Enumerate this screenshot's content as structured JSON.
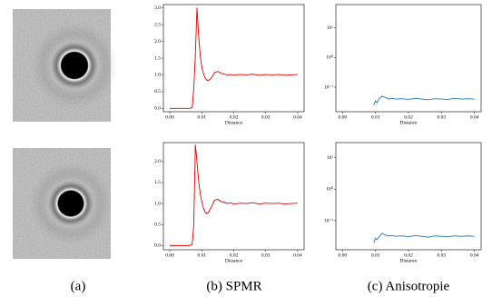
{
  "captions": [
    "(a)",
    "(b)  SPMR",
    "(c)  Anisotropie"
  ],
  "chart_data": [
    {
      "type": "line",
      "xlabel": "Distance",
      "log_y": false,
      "x": [
        0,
        0.002,
        0.004,
        0.006,
        0.007,
        0.0075,
        0.008,
        0.0085,
        0.009,
        0.0095,
        0.01,
        0.0105,
        0.011,
        0.0115,
        0.012,
        0.013,
        0.014,
        0.015,
        0.016,
        0.017,
        0.018,
        0.019,
        0.02,
        0.022,
        0.024,
        0.026,
        0.028,
        0.03,
        0.032,
        0.034,
        0.036,
        0.038,
        0.04
      ],
      "series": [
        {
          "color": "#e00000",
          "values": [
            0,
            0,
            0,
            0,
            0.02,
            0.6,
            1.6,
            3.0,
            2.2,
            1.6,
            1.25,
            1.05,
            0.92,
            0.85,
            0.83,
            0.9,
            1.07,
            1.1,
            1.05,
            1.02,
            1.0,
            1.01,
            0.99,
            1.01,
            1.0,
            1.02,
            0.99,
            1.01,
            1.0,
            1.01,
            0.99,
            1.0,
            1.01
          ]
        }
      ],
      "xlim": [
        -0.002,
        0.042
      ],
      "ylim": [
        -0.1,
        3.1
      ],
      "xticks": [
        {
          "value": 0,
          "label": "0.00"
        },
        {
          "value": 0.01,
          "label": "0.01"
        },
        {
          "value": 0.02,
          "label": "0.02"
        },
        {
          "value": 0.03,
          "label": "0.03"
        },
        {
          "value": 0.04,
          "label": "0.04"
        }
      ],
      "yticks": [
        {
          "value": 0,
          "label": "0.0"
        },
        0.5,
        {
          "value": 1,
          "label": "1.0"
        },
        1.5,
        {
          "value": 2,
          "label": "2.0"
        },
        2.5,
        {
          "value": 3,
          "label": "3.0"
        }
      ]
    },
    {
      "type": "line",
      "xlabel": "Distance",
      "log_y": true,
      "x": [
        0.0095,
        0.01,
        0.0105,
        0.011,
        0.012,
        0.013,
        0.014,
        0.015,
        0.016,
        0.018,
        0.02,
        0.022,
        0.024,
        0.026,
        0.028,
        0.03,
        0.032,
        0.034,
        0.036,
        0.038,
        0.04
      ],
      "series": [
        {
          "color": "#1f77b4",
          "values": [
            0.025,
            0.035,
            0.03,
            0.04,
            0.05,
            0.045,
            0.04,
            0.042,
            0.04,
            0.041,
            0.039,
            0.042,
            0.04,
            0.038,
            0.041,
            0.04,
            0.039,
            0.042,
            0.04,
            0.041,
            0.04
          ]
        }
      ],
      "xlim": [
        -0.002,
        0.042
      ],
      "ylim": [
        0.015,
        60
      ],
      "xticks": [
        {
          "value": 0,
          "label": "0.00"
        },
        {
          "value": 0.01,
          "label": "0.01"
        },
        {
          "value": 0.02,
          "label": "0.02"
        },
        {
          "value": 0.03,
          "label": "0.03"
        },
        {
          "value": 0.04,
          "label": "0.04"
        }
      ],
      "yticks": [
        {
          "value": 0.1,
          "label": "10⁻¹"
        },
        {
          "value": 1,
          "label": "10⁰"
        },
        {
          "value": 10,
          "label": "10¹"
        }
      ]
    },
    {
      "type": "line",
      "xlabel": "Distance",
      "log_y": false,
      "x": [
        0,
        0.002,
        0.004,
        0.006,
        0.007,
        0.0075,
        0.008,
        0.0085,
        0.009,
        0.0095,
        0.01,
        0.0105,
        0.011,
        0.0115,
        0.012,
        0.013,
        0.014,
        0.015,
        0.016,
        0.017,
        0.018,
        0.019,
        0.02,
        0.022,
        0.024,
        0.026,
        0.028,
        0.03,
        0.032,
        0.034,
        0.036,
        0.038,
        0.04
      ],
      "series": [
        {
          "color": "#e00000",
          "values": [
            0,
            0,
            0,
            0,
            0.02,
            0.5,
            2.4,
            2.0,
            1.55,
            1.25,
            1.05,
            0.9,
            0.8,
            0.76,
            0.78,
            0.92,
            1.08,
            1.1,
            1.05,
            1.03,
            1.0,
            1.02,
            0.99,
            1.01,
            1.0,
            1.02,
            0.99,
            1.01,
            1.0,
            1.01,
            0.99,
            1.0,
            1.01
          ]
        }
      ],
      "xlim": [
        -0.002,
        0.042
      ],
      "ylim": [
        -0.1,
        2.45
      ],
      "xticks": [
        {
          "value": 0,
          "label": "0.00"
        },
        {
          "value": 0.01,
          "label": "0.01"
        },
        {
          "value": 0.02,
          "label": "0.02"
        },
        {
          "value": 0.03,
          "label": "0.03"
        },
        {
          "value": 0.04,
          "label": "0.04"
        }
      ],
      "yticks": [
        {
          "value": 0,
          "label": "0.0"
        },
        0.5,
        {
          "value": 1,
          "label": "1.0"
        },
        1.5,
        {
          "value": 2,
          "label": "2.0"
        }
      ]
    },
    {
      "type": "line",
      "xlabel": "Distance",
      "log_y": true,
      "x": [
        0.0095,
        0.01,
        0.0105,
        0.011,
        0.012,
        0.013,
        0.014,
        0.015,
        0.016,
        0.018,
        0.02,
        0.022,
        0.024,
        0.026,
        0.028,
        0.03,
        0.032,
        0.034,
        0.036,
        0.038,
        0.04
      ],
      "series": [
        {
          "color": "#1f77b4",
          "values": [
            0.02,
            0.028,
            0.025,
            0.03,
            0.04,
            0.035,
            0.033,
            0.034,
            0.032,
            0.033,
            0.031,
            0.034,
            0.032,
            0.03,
            0.033,
            0.032,
            0.031,
            0.033,
            0.032,
            0.033,
            0.032
          ]
        }
      ],
      "xlim": [
        -0.002,
        0.042
      ],
      "ylim": [
        0.012,
        30
      ],
      "xticks": [
        {
          "value": 0,
          "label": "0.00"
        },
        {
          "value": 0.01,
          "label": "0.01"
        },
        {
          "value": 0.02,
          "label": "0.02"
        },
        {
          "value": 0.03,
          "label": "0.03"
        },
        {
          "value": 0.04,
          "label": "0.04"
        }
      ],
      "yticks": [
        {
          "value": 0.1,
          "label": "10⁻¹"
        },
        {
          "value": 1,
          "label": "10⁰"
        },
        {
          "value": 10,
          "label": "10¹"
        }
      ]
    }
  ]
}
